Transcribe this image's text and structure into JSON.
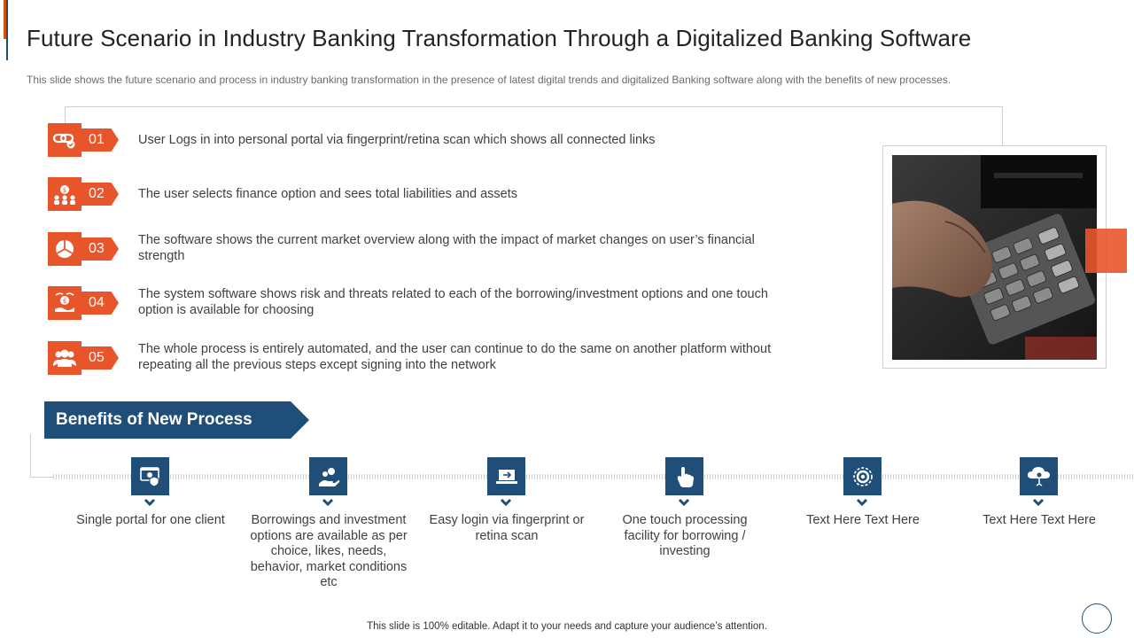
{
  "header": {
    "title": "Future Scenario in Industry Banking Transformation Through a Digitalized Banking Software",
    "subtitle": "This slide shows the future  scenario and process in industry banking transformation  in the presence of latest digital trends and digitalized Banking software  along with the benefits of new processes."
  },
  "steps": [
    {
      "num": "01",
      "icon": "chain-link-icon",
      "text": "User Logs in into personal portal via fingerprint/retina  scan which shows all connected links"
    },
    {
      "num": "02",
      "icon": "people-money-icon",
      "text": "The user selects finance option and sees total liabilities  and assets"
    },
    {
      "num": "03",
      "icon": "pie-chart-icon",
      "text": "The software shows the current market overview along with the impact of market changes on user’s financial strength"
    },
    {
      "num": "04",
      "icon": "hand-coin-icon",
      "text": "The system software shows risk and threats related to each of the borrowing/investment options and one touch option is available for choosing"
    },
    {
      "num": "05",
      "icon": "team-icon",
      "text": "The whole process is entirely automated, and the user can continue to do the same on another platform without repeating all the previous steps except signing into the network"
    }
  ],
  "benefits": {
    "heading": "Benefits of New Process",
    "items": [
      {
        "icon": "portal-icon",
        "text": "Single portal for one client"
      },
      {
        "icon": "investment-icon",
        "text": "Borrowings and investment options are available  as per choice, likes, needs, behavior, market conditions etc"
      },
      {
        "icon": "laptop-login-icon",
        "text": "Easy login via fingerprint or retina scan"
      },
      {
        "icon": "touch-hand-icon",
        "text": "One touch processing facility for borrowing / investing"
      },
      {
        "icon": "gear-icon",
        "text": "Text Here Text Here"
      },
      {
        "icon": "cloud-settings-icon",
        "text": "Text Here Text Here"
      }
    ]
  },
  "footer": {
    "text": "This slide is 100% editable. Adapt it to your needs and capture your audience’s attention."
  },
  "colors": {
    "orange": "#e8552a",
    "navy": "#1f4e79",
    "text": "#404040"
  }
}
